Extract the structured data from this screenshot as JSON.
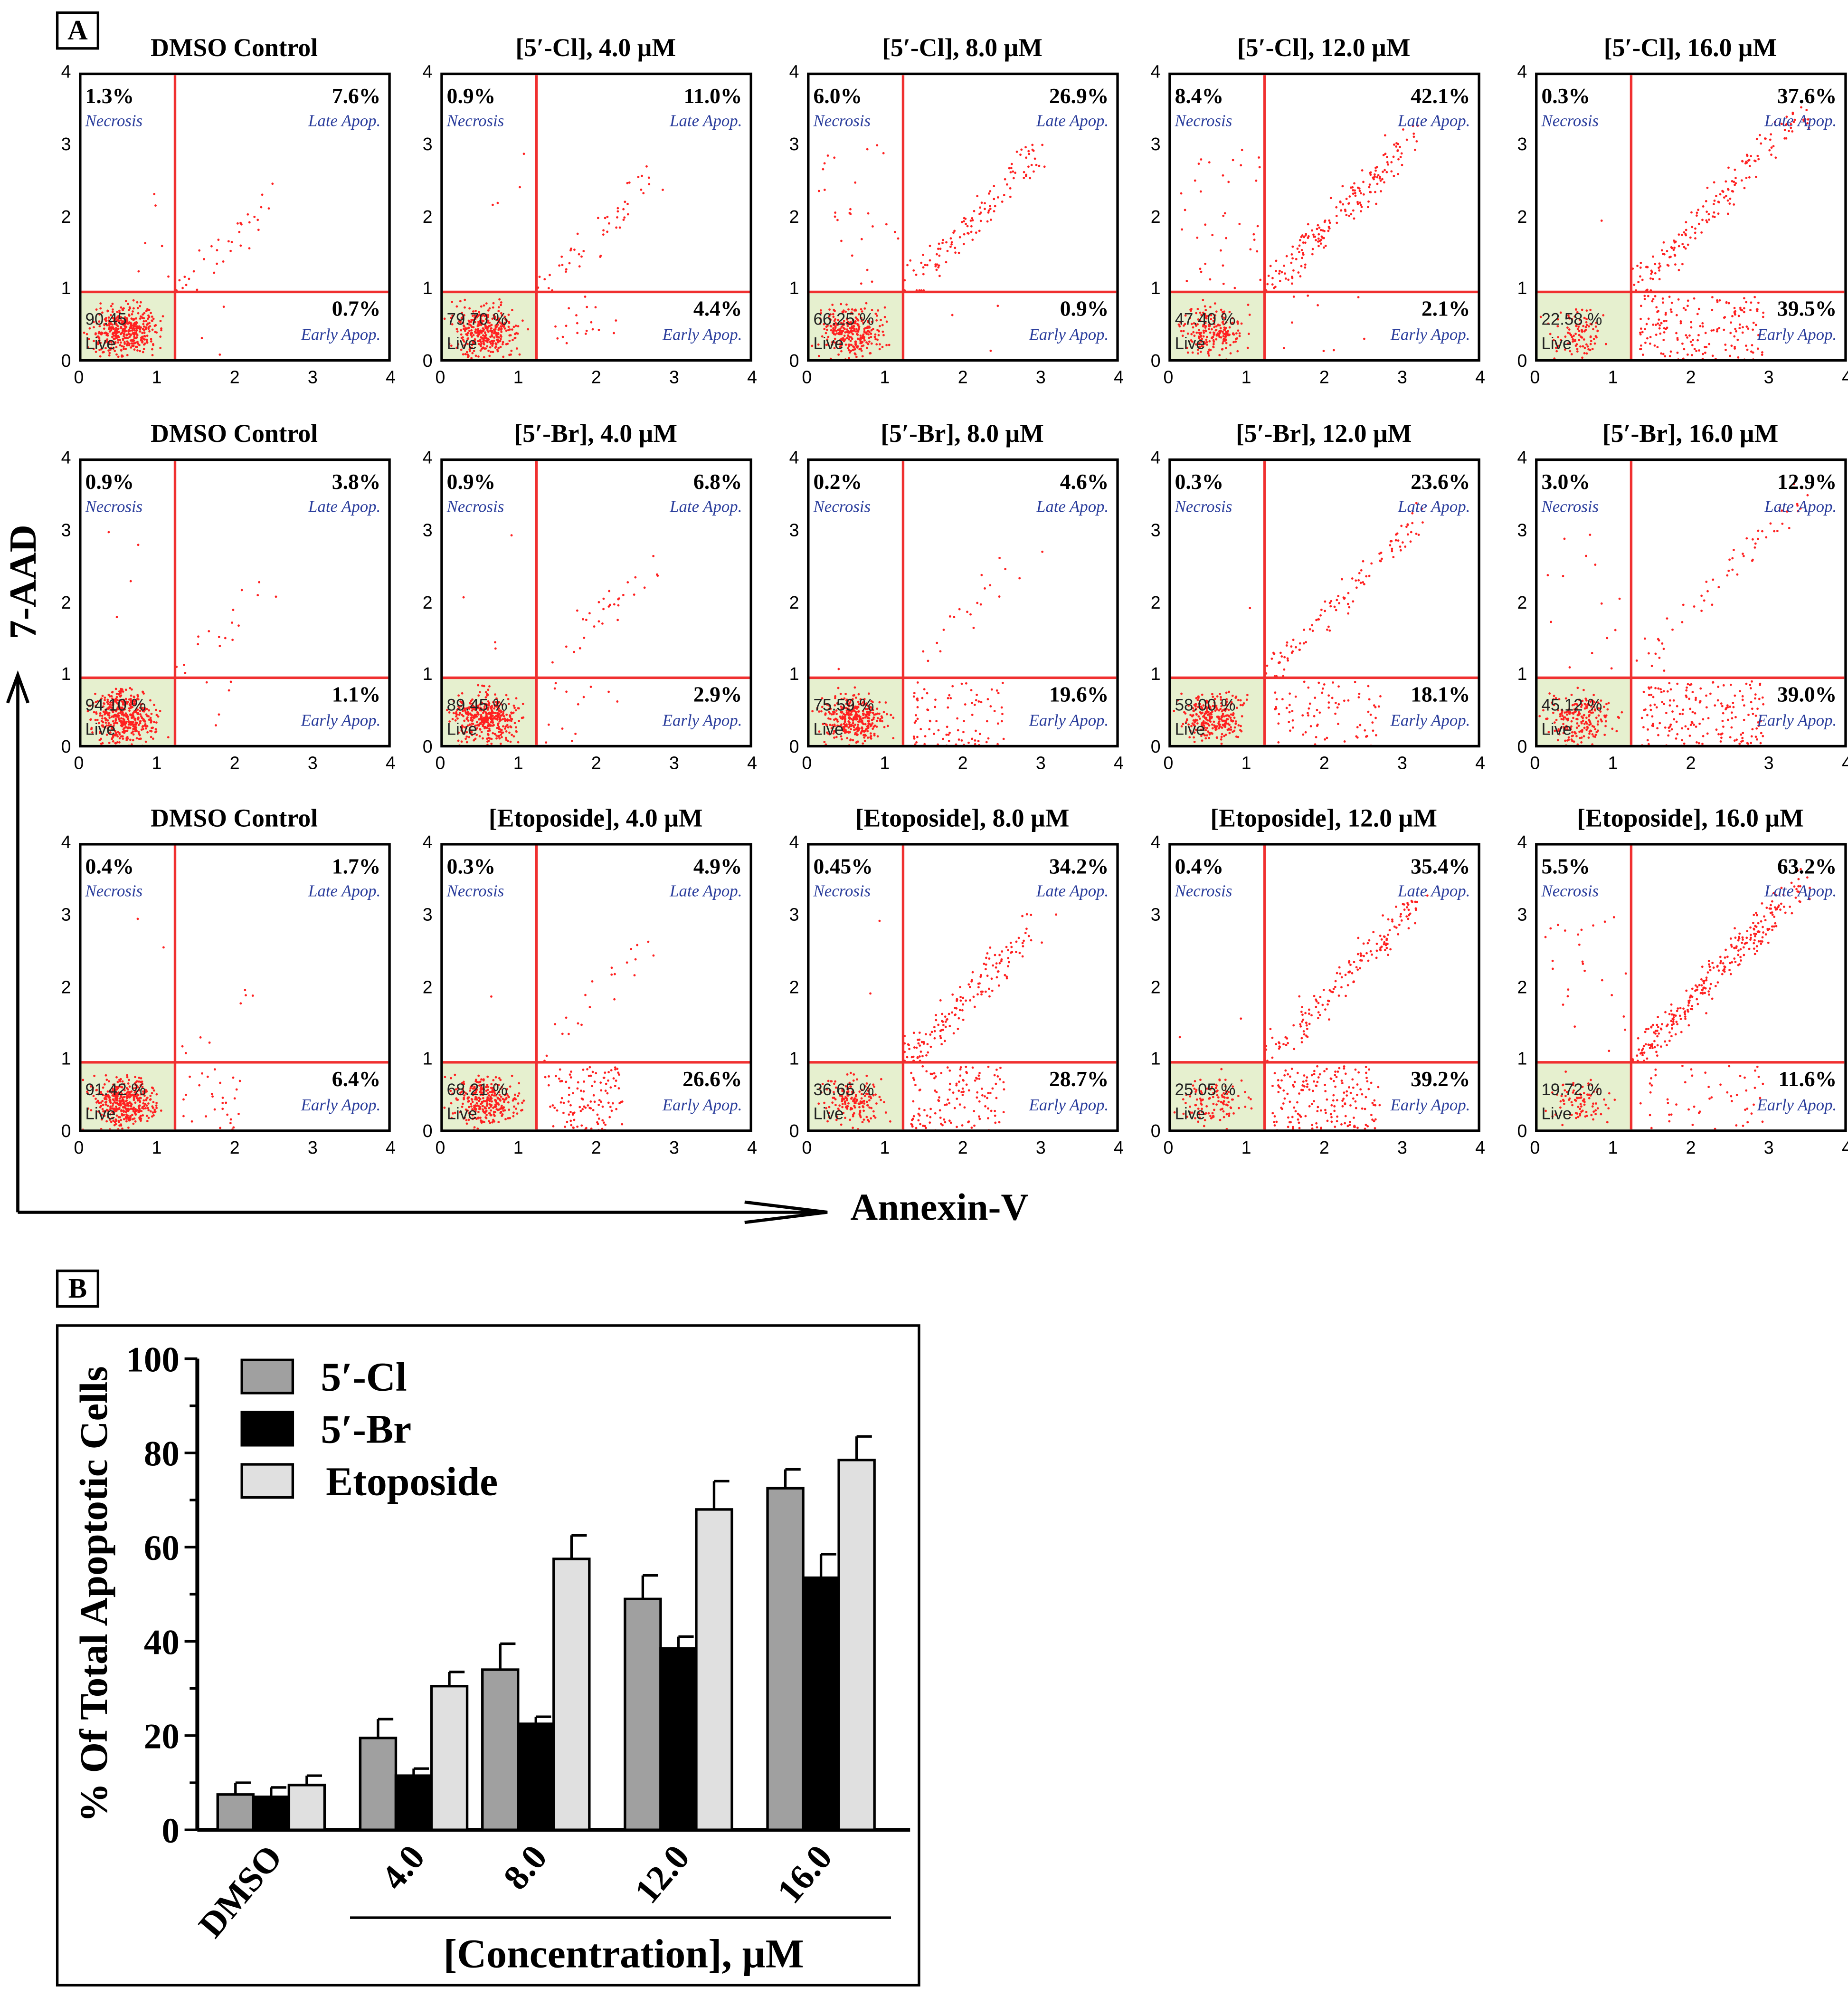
{
  "panel_a_label": "A",
  "panel_b_label": "B",
  "quadrant_labels": {
    "necrosis": "Necrosis",
    "late": "Late Apop.",
    "early": "Early Apop.",
    "live": "Live"
  },
  "x_ticks": [
    "0",
    "1",
    "2",
    "3",
    "4"
  ],
  "y_ticks": [
    "0",
    "1",
    "2",
    "3",
    "4"
  ],
  "y_axis_title": "7-AAD",
  "x_axis_title": "Annexin-V",
  "chart_data": [
    {
      "type": "scatter",
      "description_kind": "flow-cytometry quadrant plots",
      "xlim": [
        0,
        4
      ],
      "ylim": [
        0,
        4
      ],
      "gates": {
        "x": 1.2,
        "y": 1.0
      },
      "rows": [
        [
          {
            "title": "DMSO Control",
            "necrosis": "1.3%",
            "late": "7.6%",
            "early": "0.7%",
            "live": "90.45"
          },
          {
            "title": "[5′-Cl], 4.0 µM",
            "necrosis": "0.9%",
            "late": "11.0%",
            "early": "4.4%",
            "live": "79.70 %"
          },
          {
            "title": "[5′-Cl], 8.0 µM",
            "necrosis": "6.0%",
            "late": "26.9%",
            "early": "0.9%",
            "live": "66.25 %"
          },
          {
            "title": "[5′-Cl], 12.0 µM",
            "necrosis": "8.4%",
            "late": "42.1%",
            "early": "2.1%",
            "live": "47.40 %"
          },
          {
            "title": "[5′-Cl], 16.0 µM",
            "necrosis": "0.3%",
            "late": "37.6%",
            "early": "39.5%",
            "live": "22.58 %"
          }
        ],
        [
          {
            "title": "DMSO Control",
            "necrosis": "0.9%",
            "late": "3.8%",
            "early": "1.1%",
            "live": "94.10 %"
          },
          {
            "title": "[5′-Br], 4.0 µM",
            "necrosis": "0.9%",
            "late": "6.8%",
            "early": "2.9%",
            "live": "89.45 %"
          },
          {
            "title": "[5′-Br], 8.0 µM",
            "necrosis": "0.2%",
            "late": "4.6%",
            "early": "19.6%",
            "live": "75.59 %"
          },
          {
            "title": "[5′-Br], 12.0 µM",
            "necrosis": "0.3%",
            "late": "23.6%",
            "early": "18.1%",
            "live": "58.00 %"
          },
          {
            "title": "[5′-Br], 16.0 µM",
            "necrosis": "3.0%",
            "late": "12.9%",
            "early": "39.0%",
            "live": "45.12 %"
          }
        ],
        [
          {
            "title": "DMSO Control",
            "necrosis": "0.4%",
            "late": "1.7%",
            "early": "6.4%",
            "live": "91.42 %"
          },
          {
            "title": "[Etoposide], 4.0 µM",
            "necrosis": "0.3%",
            "late": "4.9%",
            "early": "26.6%",
            "live": "68.21 %"
          },
          {
            "title": "[Etoposide], 8.0 µM",
            "necrosis": "0.45%",
            "late": "34.2%",
            "early": "28.7%",
            "live": "36.65 %"
          },
          {
            "title": "[Etoposide], 12.0 µM",
            "necrosis": "0.4%",
            "late": "35.4%",
            "early": "39.2%",
            "live": "25.05 %"
          },
          {
            "title": "[Etoposide], 16.0 µM",
            "necrosis": "5.5%",
            "late": "63.2%",
            "early": "11.6%",
            "live": "19.72 %"
          }
        ]
      ]
    },
    {
      "type": "bar",
      "title": "",
      "ylabel": "% Of Total Apoptotic Cells",
      "xlabel": "[Concentration], µM",
      "ylim": [
        0,
        100
      ],
      "yticks": [
        "0",
        "20",
        "40",
        "60",
        "80",
        "100"
      ],
      "categories": [
        "DMSO",
        "4.0",
        "8.0",
        "12.0",
        "16.0"
      ],
      "legend_position": "top-left",
      "series": [
        {
          "name": "5′-Cl",
          "color": "#a0a0a0",
          "values": [
            7.5,
            19.5,
            34,
            49,
            72.5
          ],
          "errors": [
            2.5,
            4,
            5.5,
            5,
            4
          ]
        },
        {
          "name": "5′-Br",
          "color": "#000000",
          "values": [
            7,
            11.5,
            22.5,
            38.5,
            53.5
          ],
          "errors": [
            2,
            1.5,
            1.5,
            2.5,
            5
          ]
        },
        {
          "name": "Etoposide",
          "color": "#e0e0e0",
          "values": [
            9.5,
            30.5,
            57.5,
            68,
            78.5
          ],
          "errors": [
            2,
            3,
            5,
            6,
            5
          ]
        }
      ]
    }
  ]
}
